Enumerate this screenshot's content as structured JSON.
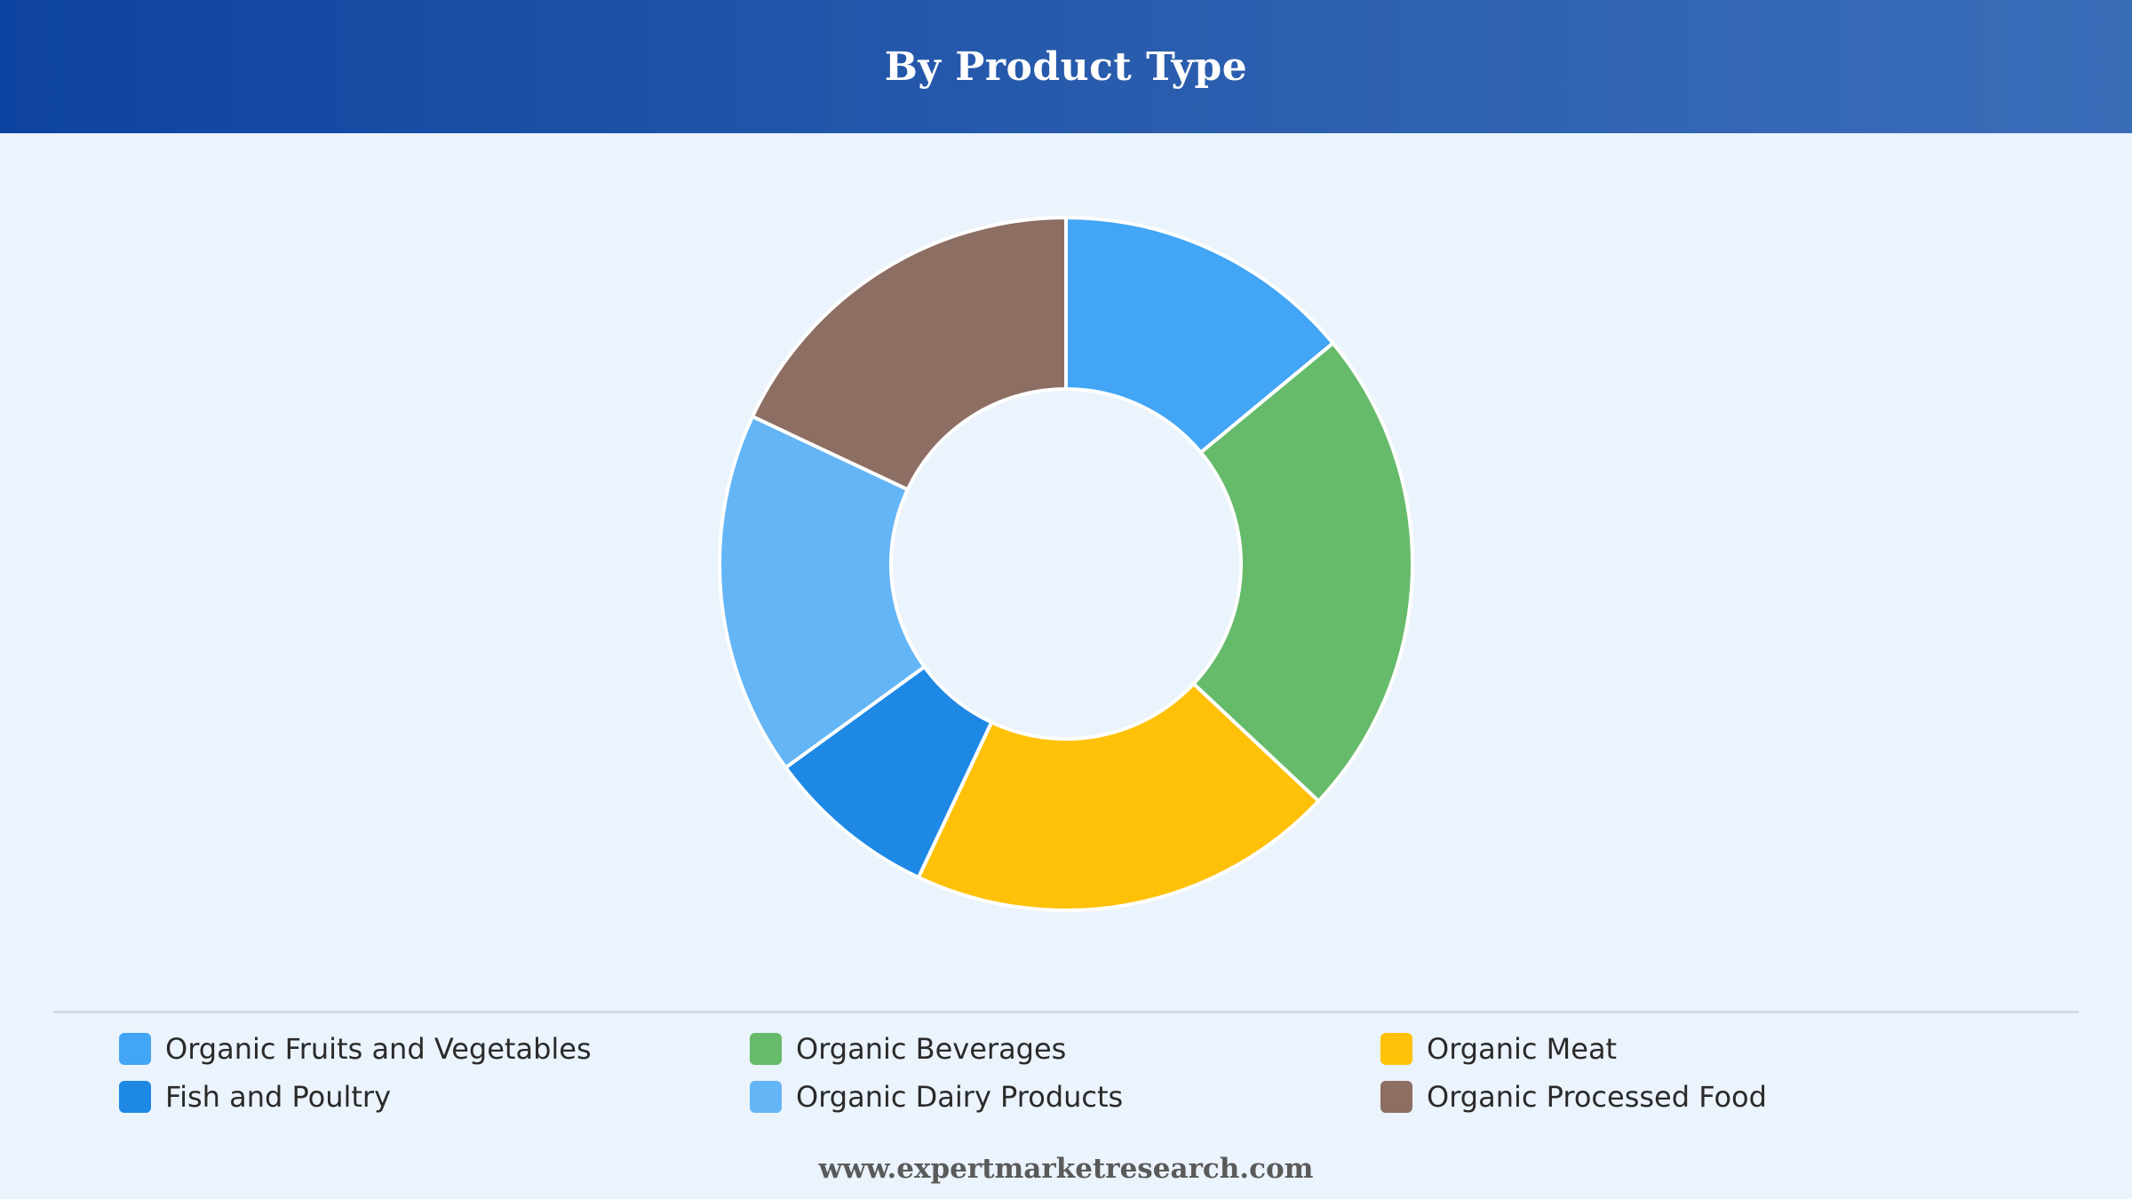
{
  "header": {
    "title": "By Product Type"
  },
  "footer": {
    "website": "www.expertmarketresearch.com"
  },
  "chart_data": {
    "type": "pie",
    "donut": true,
    "title": "By Product Type",
    "legend_position": "bottom",
    "categories": [
      "Organic Fruits and Vegetables",
      "Organic Beverages",
      "Organic Meat",
      "Fish and Poultry",
      "Organic Dairy Products",
      "Organic Processed Food"
    ],
    "values": [
      14,
      23,
      20,
      8,
      17,
      18
    ],
    "colors": [
      "#42a5f5",
      "#66bb6a",
      "#ffc107",
      "#1e88e5",
      "#64b5f6",
      "#8d6e63"
    ],
    "slice_order": [
      0,
      1,
      2,
      3,
      4,
      5
    ]
  }
}
